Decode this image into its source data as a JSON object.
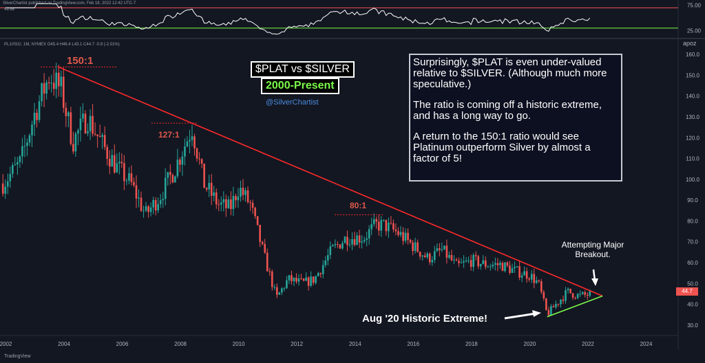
{
  "header": {
    "credit": "SilverChartist published on TradingView.com, Feb 18, 2022 12:42 UTC-7",
    "symbol_line": "PL1!/SI1!, 1M, NYMEX  O45.4 H46.4 L43.1 C44.7 -0.9 (-2.01%)",
    "rsi_value": "49.66",
    "scale_mode": "apoz",
    "logo": "TradingView"
  },
  "colors": {
    "background": "#131722",
    "up_candle": "#26a69a",
    "down_candle": "#ef5350",
    "trendline": "#ff2a2a",
    "support": "#7cfc4a",
    "rsi_line": "#ffffff",
    "rsi_upper": "#ef5350",
    "rsi_lower": "#7cfc4a"
  },
  "annotations": {
    "title": "$PLAT vs $SILVER",
    "subtitle": "2000-Present",
    "handle": "@SilverChartist",
    "note_p1": "Surprisingly, $PLAT is even under-valued relative to $SILVER.  (Although much more speculative.)",
    "note_p2": "The ratio is coming off a historic extreme, and has a long way to go.",
    "note_p3": "A return to the 150:1 ratio would see Platinum outperform Silver by almost a factor of 5!",
    "attempting": "Attempting Major Breakout.",
    "extreme": "Aug '20 Historic Extreme!",
    "ratio_150": "150:1",
    "ratio_127": "127:1",
    "ratio_80": "80:1",
    "last_price": "44.7"
  },
  "chart_data": {
    "type": "candlestick",
    "title": "$PLAT vs $SILVER",
    "xlim": [
      2001.8,
      2025.1
    ],
    "ylim": [
      25,
      165
    ],
    "x_ticks": [
      "2002",
      "2004",
      "2006",
      "2008",
      "2010",
      "2012",
      "2014",
      "2016",
      "2018",
      "2020",
      "2022",
      "2024"
    ],
    "y_ticks": [
      "30.0",
      "40.0",
      "50.0",
      "60.0",
      "70.0",
      "80.0",
      "90.0",
      "100.0",
      "110.0",
      "120.0",
      "130.0",
      "140.0",
      "150.0",
      "160.0"
    ],
    "rsi": {
      "ticks": [
        "25.00",
        "75.00"
      ],
      "ylim": [
        15,
        80
      ],
      "upper": 70,
      "lower": 30,
      "last": 49.66
    },
    "anchors": [
      [
        2001.9,
        98
      ],
      [
        2002.5,
        108
      ],
      [
        2003.0,
        132
      ],
      [
        2003.5,
        150
      ],
      [
        2003.9,
        143
      ],
      [
        2004.3,
        118
      ],
      [
        2004.8,
        130
      ],
      [
        2005.3,
        117
      ],
      [
        2005.8,
        106
      ],
      [
        2006.3,
        98
      ],
      [
        2006.8,
        83
      ],
      [
        2007.3,
        92
      ],
      [
        2007.8,
        105
      ],
      [
        2008.4,
        125
      ],
      [
        2008.8,
        98
      ],
      [
        2009.3,
        88
      ],
      [
        2009.7,
        86
      ],
      [
        2010.0,
        96
      ],
      [
        2010.4,
        88
      ],
      [
        2010.9,
        62
      ],
      [
        2011.3,
        43
      ],
      [
        2011.7,
        52
      ],
      [
        2012.2,
        50
      ],
      [
        2012.6,
        52
      ],
      [
        2013.2,
        66
      ],
      [
        2013.7,
        72
      ],
      [
        2014.3,
        72
      ],
      [
        2014.7,
        78
      ],
      [
        2015.0,
        78
      ],
      [
        2015.5,
        74
      ],
      [
        2016.0,
        68
      ],
      [
        2016.5,
        62
      ],
      [
        2017.0,
        66
      ],
      [
        2017.5,
        58
      ],
      [
        2018.0,
        61
      ],
      [
        2018.5,
        59
      ],
      [
        2019.0,
        59
      ],
      [
        2019.5,
        56
      ],
      [
        2020.0,
        54
      ],
      [
        2020.3,
        50
      ],
      [
        2020.6,
        35
      ],
      [
        2020.9,
        40
      ],
      [
        2021.3,
        46
      ],
      [
        2021.7,
        44
      ],
      [
        2022.1,
        44.7
      ]
    ],
    "trendline": [
      [
        2003.8,
        154
      ],
      [
        2022.5,
        44
      ]
    ],
    "support": [
      [
        2020.6,
        34
      ],
      [
        2022.5,
        44
      ]
    ],
    "levels": [
      {
        "label": "150:1",
        "y": 154,
        "x": [
          2003.2,
          2005.8
        ]
      },
      {
        "label": "127:1",
        "y": 127,
        "x": [
          2007.0,
          2008.6
        ]
      },
      {
        "label": "80:1",
        "y": 83,
        "x": [
          2013.3,
          2015.0
        ]
      }
    ]
  }
}
